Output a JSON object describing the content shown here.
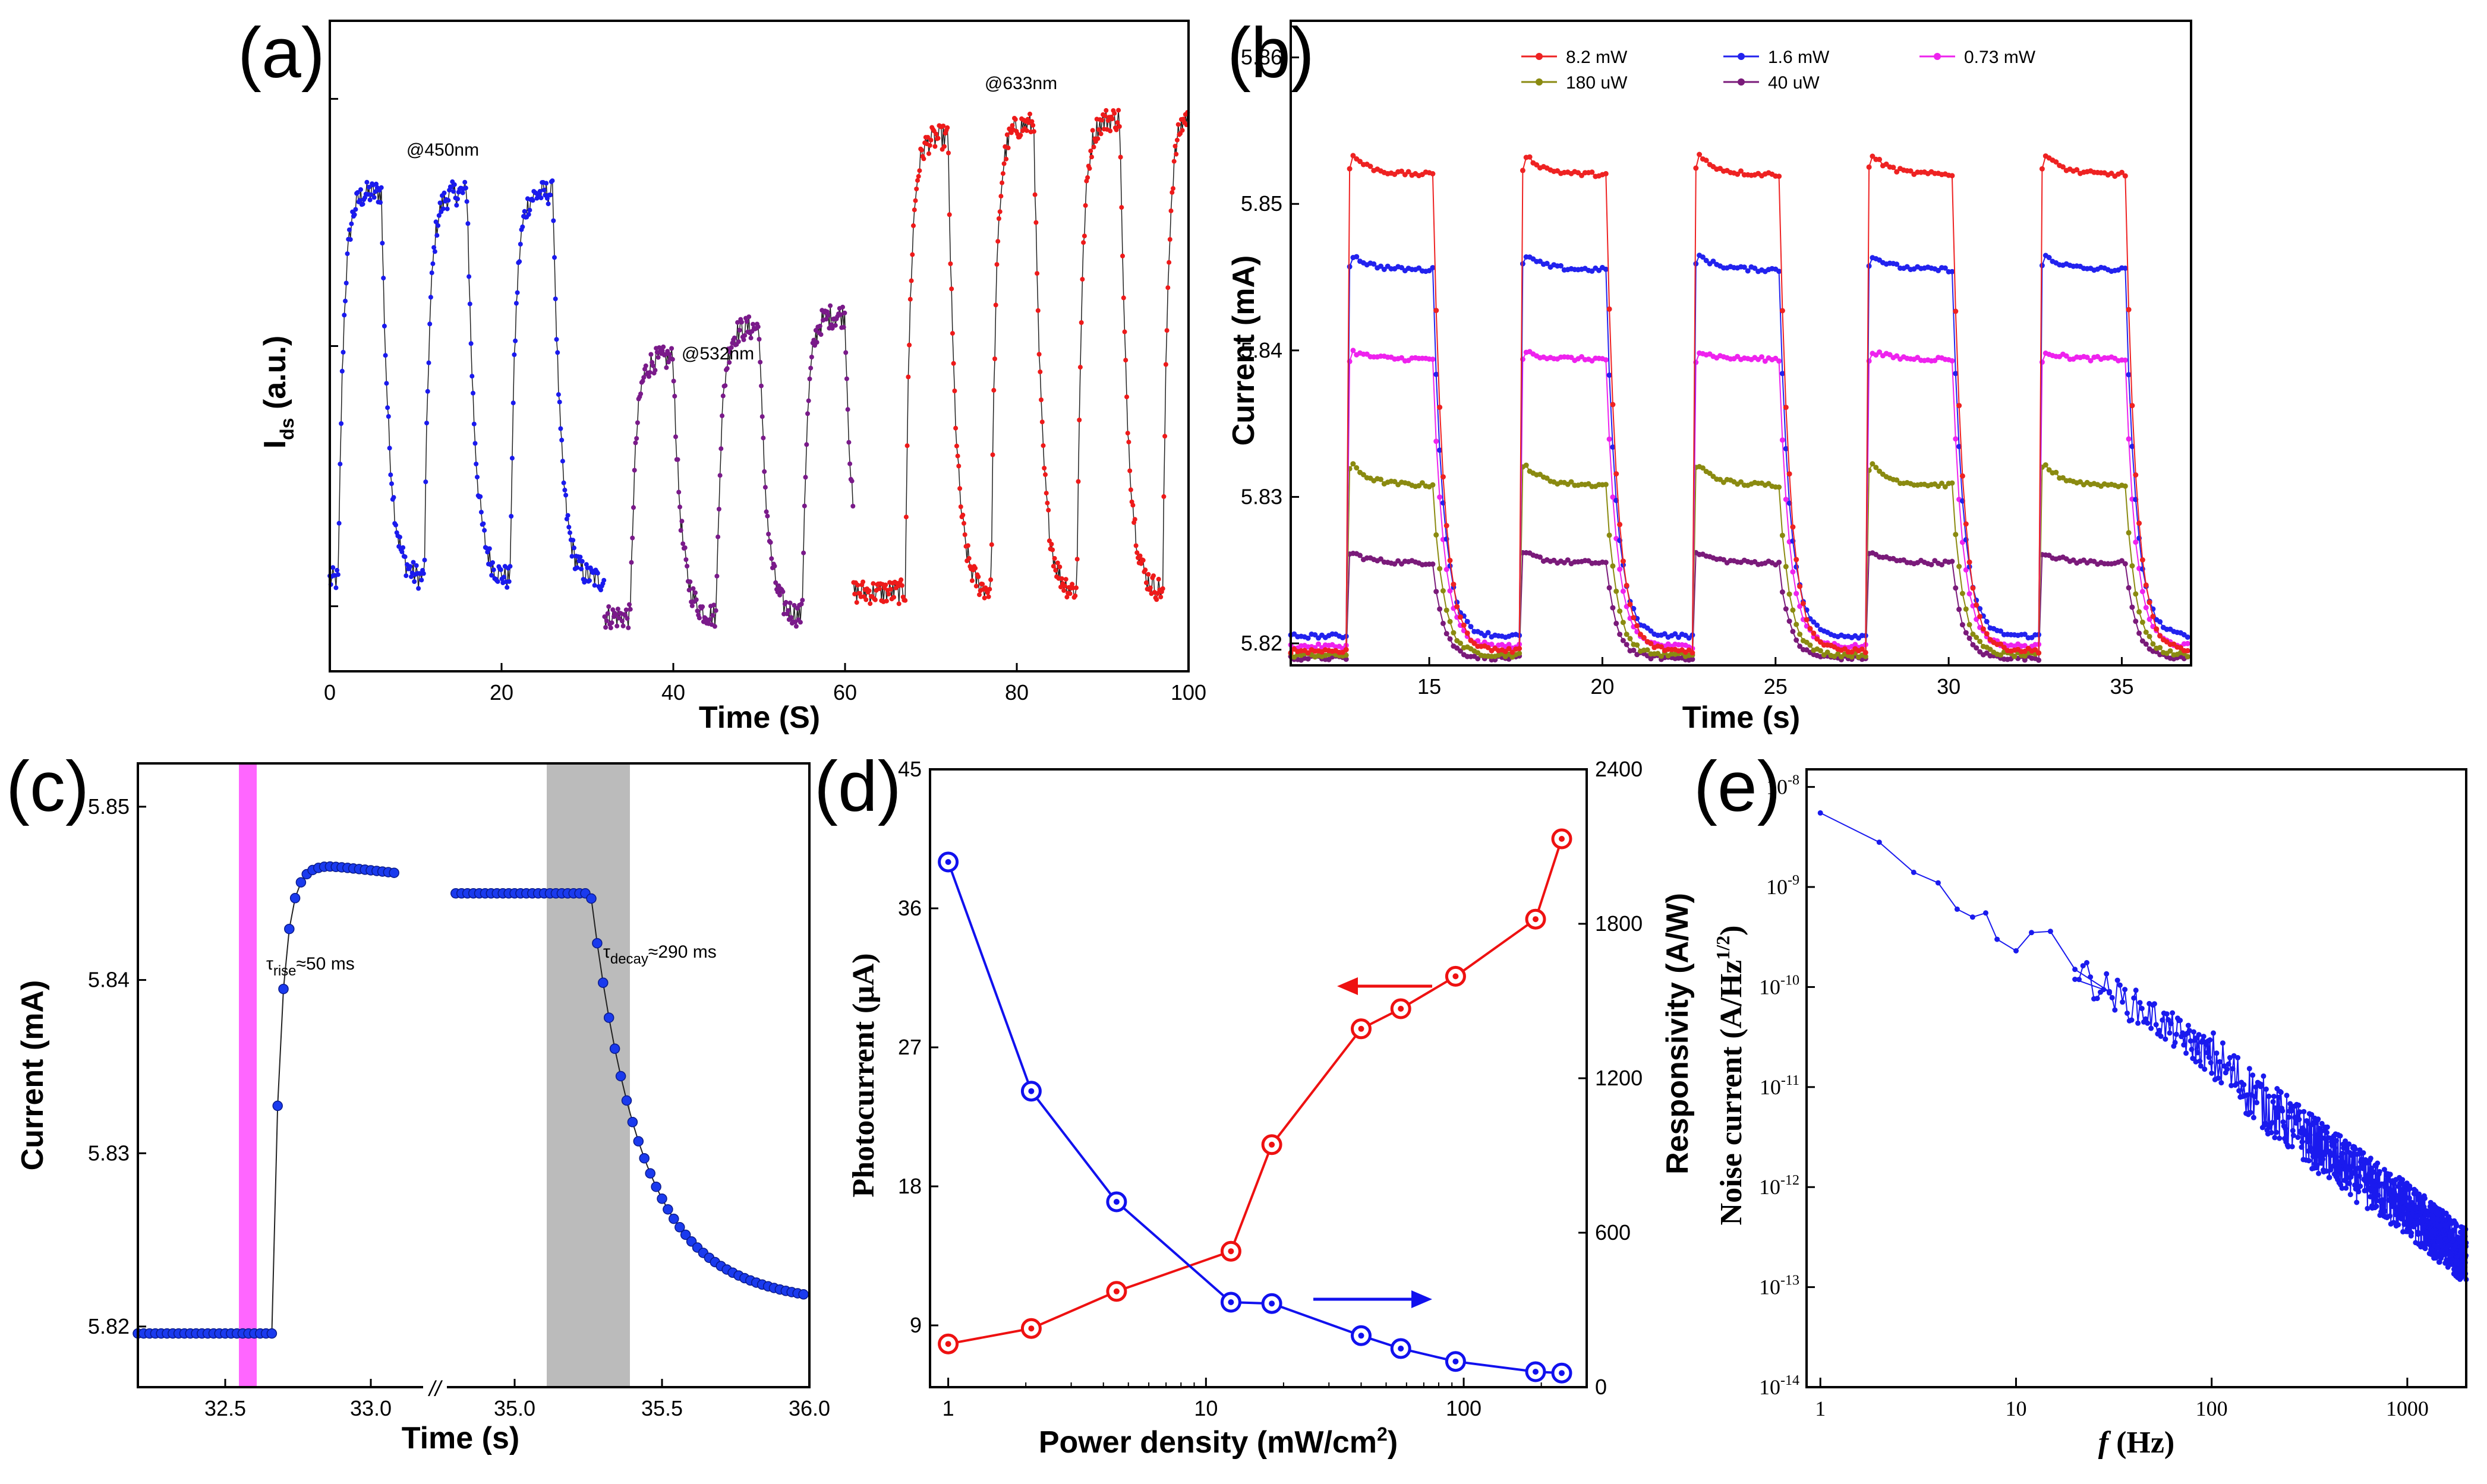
{
  "chart_data": [
    {
      "panel": "(a)",
      "type": "line",
      "xlabel": "Time (S)",
      "ylabel": "I",
      "ylabel_sub": "ds",
      "ylabel_suffix": " (a.u.)",
      "xlim": [
        0,
        100
      ],
      "ylim": [
        0,
        1
      ],
      "xticks": [
        0,
        20,
        40,
        60,
        80,
        100
      ],
      "annotations": [
        "@450nm",
        "@532nm",
        "@633nm"
      ],
      "series": [
        {
          "name": "@450nm",
          "color": "#1a1aee",
          "segment": [
            0,
            32
          ],
          "off_level": 0.12,
          "on_level": 0.75,
          "on_intervals": [
            [
              1,
              6
            ],
            [
              11,
              16
            ],
            [
              21,
              26
            ]
          ]
        },
        {
          "name": "@532nm",
          "color": "#7a1a8a",
          "segment": [
            32,
            61
          ],
          "off_level": 0.06,
          "on_level": [
            0.48,
            0.53,
            0.55
          ],
          "on_intervals": [
            [
              35,
              40
            ],
            [
              45,
              50
            ],
            [
              55,
              60
            ]
          ]
        },
        {
          "name": "@633nm",
          "color": "#ee1a1a",
          "segment": [
            61,
            100
          ],
          "off_level": 0.1,
          "on_level": [
            0.84,
            0.86,
            0.87,
            0.88
          ],
          "on_intervals": [
            [
              67,
              72
            ],
            [
              77,
              82
            ],
            [
              87,
              92
            ],
            [
              97,
              100
            ]
          ]
        }
      ]
    },
    {
      "panel": "(b)",
      "type": "line",
      "xlabel": "Time (s)",
      "ylabel": "Current (mA)",
      "xlim": [
        11,
        37
      ],
      "ylim": [
        5.8185,
        5.8625
      ],
      "xticks": [
        15,
        20,
        25,
        30,
        35
      ],
      "yticks": [
        "5.82",
        "5.83",
        "5.84",
        "5.85",
        "5.86"
      ],
      "ytick_values": [
        5.82,
        5.83,
        5.84,
        5.85,
        5.86
      ],
      "on_intervals": [
        [
          12.6,
          15.1
        ],
        [
          17.6,
          20.1
        ],
        [
          22.6,
          25.1
        ],
        [
          27.6,
          30.1
        ],
        [
          32.6,
          35.1
        ]
      ],
      "legend": [
        "8.2 mW",
        "1.6 mW",
        "0.73 mW",
        "180 uW",
        "40 uW"
      ],
      "series": [
        {
          "name": "8.2 mW",
          "color": "#ee2222",
          "base": 5.8195,
          "peak": 5.854,
          "plateau": 5.852
        },
        {
          "name": "1.6 mW",
          "color": "#2222ee",
          "base": 5.8205,
          "peak": 5.847,
          "plateau": 5.8455
        },
        {
          "name": "0.73 mW",
          "color": "#ee22ee",
          "base": 5.8198,
          "peak": 5.8402,
          "plateau": 5.8394
        },
        {
          "name": "180 uW",
          "color": "#8a8a10",
          "base": 5.8192,
          "peak": 5.8328,
          "plateau": 5.8308
        },
        {
          "name": "40 uW",
          "color": "#7a1a7a",
          "base": 5.819,
          "peak": 5.8265,
          "plateau": 5.8255
        }
      ]
    },
    {
      "panel": "(c)",
      "type": "scatter",
      "xlabel": "Time (s)",
      "ylabel": "Current (mA)",
      "xticks": [
        "32.5",
        "33.0",
        "35.0",
        "35.5",
        "36.0"
      ],
      "yticks": [
        "5.82",
        "5.83",
        "5.84",
        "5.85"
      ],
      "ytick_values": [
        5.82,
        5.83,
        5.84,
        5.85
      ],
      "ylim": [
        5.8165,
        5.8525
      ],
      "axis_break": "//",
      "rise_label": "τ",
      "rise_sub": "rise",
      "rise_value": "≈50 ms",
      "decay_label": "τ",
      "decay_sub": "decay",
      "decay_value": "≈290 ms",
      "highlight_colors": {
        "rise": "#ff66ff",
        "decay": "#bbbbbb"
      },
      "rise": {
        "t0": 32.66,
        "t1": 32.72,
        "base": 5.8196,
        "top": 5.8466
      },
      "decay": {
        "t0": 35.26,
        "t1": 35.5,
        "start": 5.845,
        "end": 5.8207
      }
    },
    {
      "panel": "(d)",
      "type": "line",
      "xlabel": "Power density (mW/cm",
      "xlabel_sup": "2",
      "xlabel_suffix": ")",
      "ylabel_left": "Photocurrent (μA)",
      "ylabel_right": "Responsivity (A/W)",
      "xscale": "log",
      "xlim": [
        0.85,
        300
      ],
      "ylim_left": [
        5,
        45
      ],
      "ylim_right": [
        0,
        2400
      ],
      "xticks": [
        "1",
        "10",
        "100"
      ],
      "xtick_values": [
        1,
        10,
        100
      ],
      "yticks_left": [
        "9",
        "18",
        "27",
        "36",
        "45"
      ],
      "yticks_left_values": [
        9,
        18,
        27,
        36,
        45
      ],
      "yticks_right": [
        "0",
        "600",
        "1200",
        "1800",
        "2400"
      ],
      "yticks_right_values": [
        0,
        600,
        1200,
        1800,
        2400
      ],
      "x": [
        1,
        2.1,
        4.5,
        12.5,
        18,
        40,
        57,
        93,
        190,
        240
      ],
      "series": [
        {
          "name": "Photocurrent",
          "axis": "left",
          "color": "#ee1111",
          "values": [
            7.8,
            8.8,
            11.2,
            13.8,
            20.7,
            28.2,
            29.5,
            31.6,
            35.3,
            40.5
          ]
        },
        {
          "name": "Responsivity",
          "axis": "right",
          "color": "#1111ee",
          "values": [
            2040,
            1150,
            720,
            330,
            325,
            200,
            150,
            100,
            60,
            55
          ]
        }
      ]
    },
    {
      "panel": "(e)",
      "type": "scatter",
      "xlabel": "f",
      "xlabel_suffix": " (Hz)",
      "ylabel": "Noise current (A/Hz",
      "ylabel_sup": "1/2",
      "ylabel_suffix": ")",
      "xscale": "log",
      "yscale": "log",
      "xlim": [
        0.85,
        2000
      ],
      "ylim": [
        1e-14,
        1.5e-08
      ],
      "xticks": [
        "1",
        "10",
        "100",
        "1000"
      ],
      "xtick_values": [
        1,
        10,
        100,
        1000
      ],
      "yticks_exp": [
        -8,
        -9,
        -10,
        -11,
        -12,
        -13,
        -14
      ],
      "ytick_base": "10",
      "color": "#1a1aee",
      "points": [
        [
          1,
          5.5e-09
        ],
        [
          2,
          2.8e-09
        ],
        [
          3,
          1.4e-09
        ],
        [
          4,
          1.1e-09
        ],
        [
          5,
          6e-10
        ],
        [
          6,
          5e-10
        ],
        [
          7,
          5.5e-10
        ],
        [
          8,
          3e-10
        ],
        [
          10,
          2.3e-10
        ],
        [
          12,
          3.5e-10
        ],
        [
          15,
          3.6e-10
        ],
        [
          20,
          1.5e-10
        ],
        [
          30,
          9e-11
        ],
        [
          50,
          5e-11
        ],
        [
          100,
          2e-11
        ],
        [
          200,
          6e-12
        ],
        [
          500,
          1.5e-12
        ],
        [
          1000,
          6e-13
        ],
        [
          2000,
          2e-13
        ]
      ]
    }
  ],
  "panel_letters": [
    "(a)",
    "(b)",
    "(c)",
    "(d)",
    "(e)"
  ],
  "legend_b": [
    "8.2 mW",
    "1.6 mW",
    "0.73 mW",
    "180 uW",
    "40 uW"
  ]
}
